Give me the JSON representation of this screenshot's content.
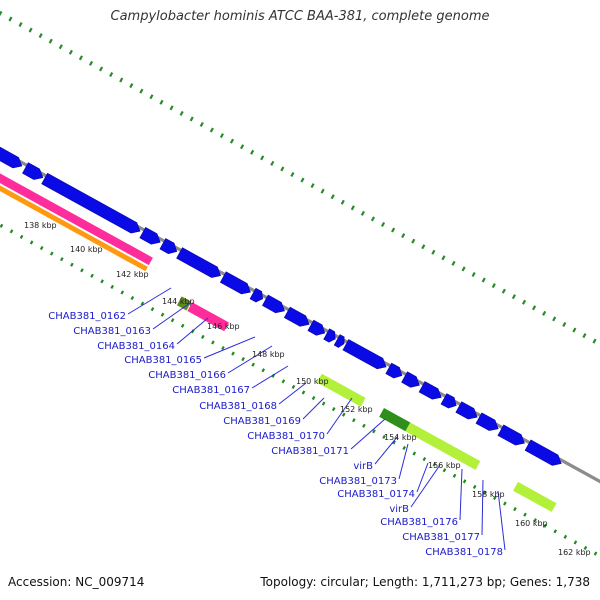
{
  "title": "Campylobacter hominis ATCC BAA-381, complete genome",
  "footer": {
    "accession": "Accession: NC_009714",
    "topology": "Topology: circular; Length: 1,711,273 bp; Genes: 1,738"
  },
  "scale_labels": [
    "138 kbp",
    "140 kbp",
    "142 kbp",
    "144 kbp",
    "146 kbp",
    "148 kbp",
    "150 kbp",
    "152 kbp",
    "154 kbp",
    "156 kbp",
    "158 kbp",
    "160 kbp",
    "162 kbp"
  ],
  "gene_labels": [
    "CHAB381_0162",
    "CHAB381_0163",
    "CHAB381_0164",
    "CHAB381_0165",
    "CHAB381_0166",
    "CHAB381_0167",
    "CHAB381_0168",
    "CHAB381_0169",
    "CHAB381_0170",
    "CHAB381_0171",
    "virB",
    "CHAB381_0173",
    "CHAB381_0174",
    "virB",
    "CHAB381_0176",
    "CHAB381_0177",
    "CHAB381_0178"
  ],
  "colors": {
    "backbone": "#8c8c8c",
    "forward_gene": "#0a0ae6",
    "feature_magenta": "#ff2d9c",
    "feature_orange": "#ff9a10",
    "feature_lime": "#b2f03a",
    "feature_olive": "#5e8a1e",
    "feature_green": "#2f8f1c",
    "tick_mark": "#1f8a1f",
    "outer_tick": "#2a8a2a",
    "gene_label": "#1a1acc"
  }
}
